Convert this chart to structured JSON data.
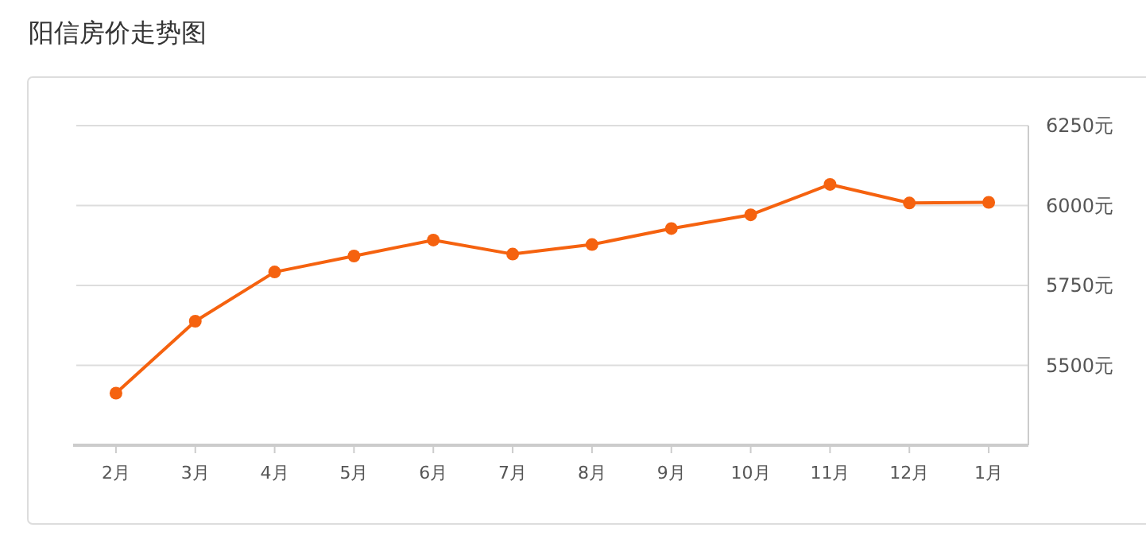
{
  "chart_data": {
    "type": "line",
    "title": "阳信房价走势图",
    "categories": [
      "2月",
      "3月",
      "4月",
      "5月",
      "6月",
      "7月",
      "8月",
      "9月",
      "10月",
      "11月",
      "12月",
      "1月"
    ],
    "series": [
      {
        "color": "#f5620f",
        "values": [
          5413,
          5638,
          5792,
          5842,
          5892,
          5848,
          5878,
          5928,
          5971,
          6066,
          6008,
          6010
        ]
      }
    ],
    "ylim": [
      5250,
      6250
    ],
    "yticks": [
      {
        "value": 5500,
        "label": "5500元"
      },
      {
        "value": 5750,
        "label": "5750元"
      },
      {
        "value": 6000,
        "label": "6000元"
      },
      {
        "value": 6250,
        "label": "6250元"
      }
    ],
    "grid": "y",
    "marker": "circle"
  }
}
